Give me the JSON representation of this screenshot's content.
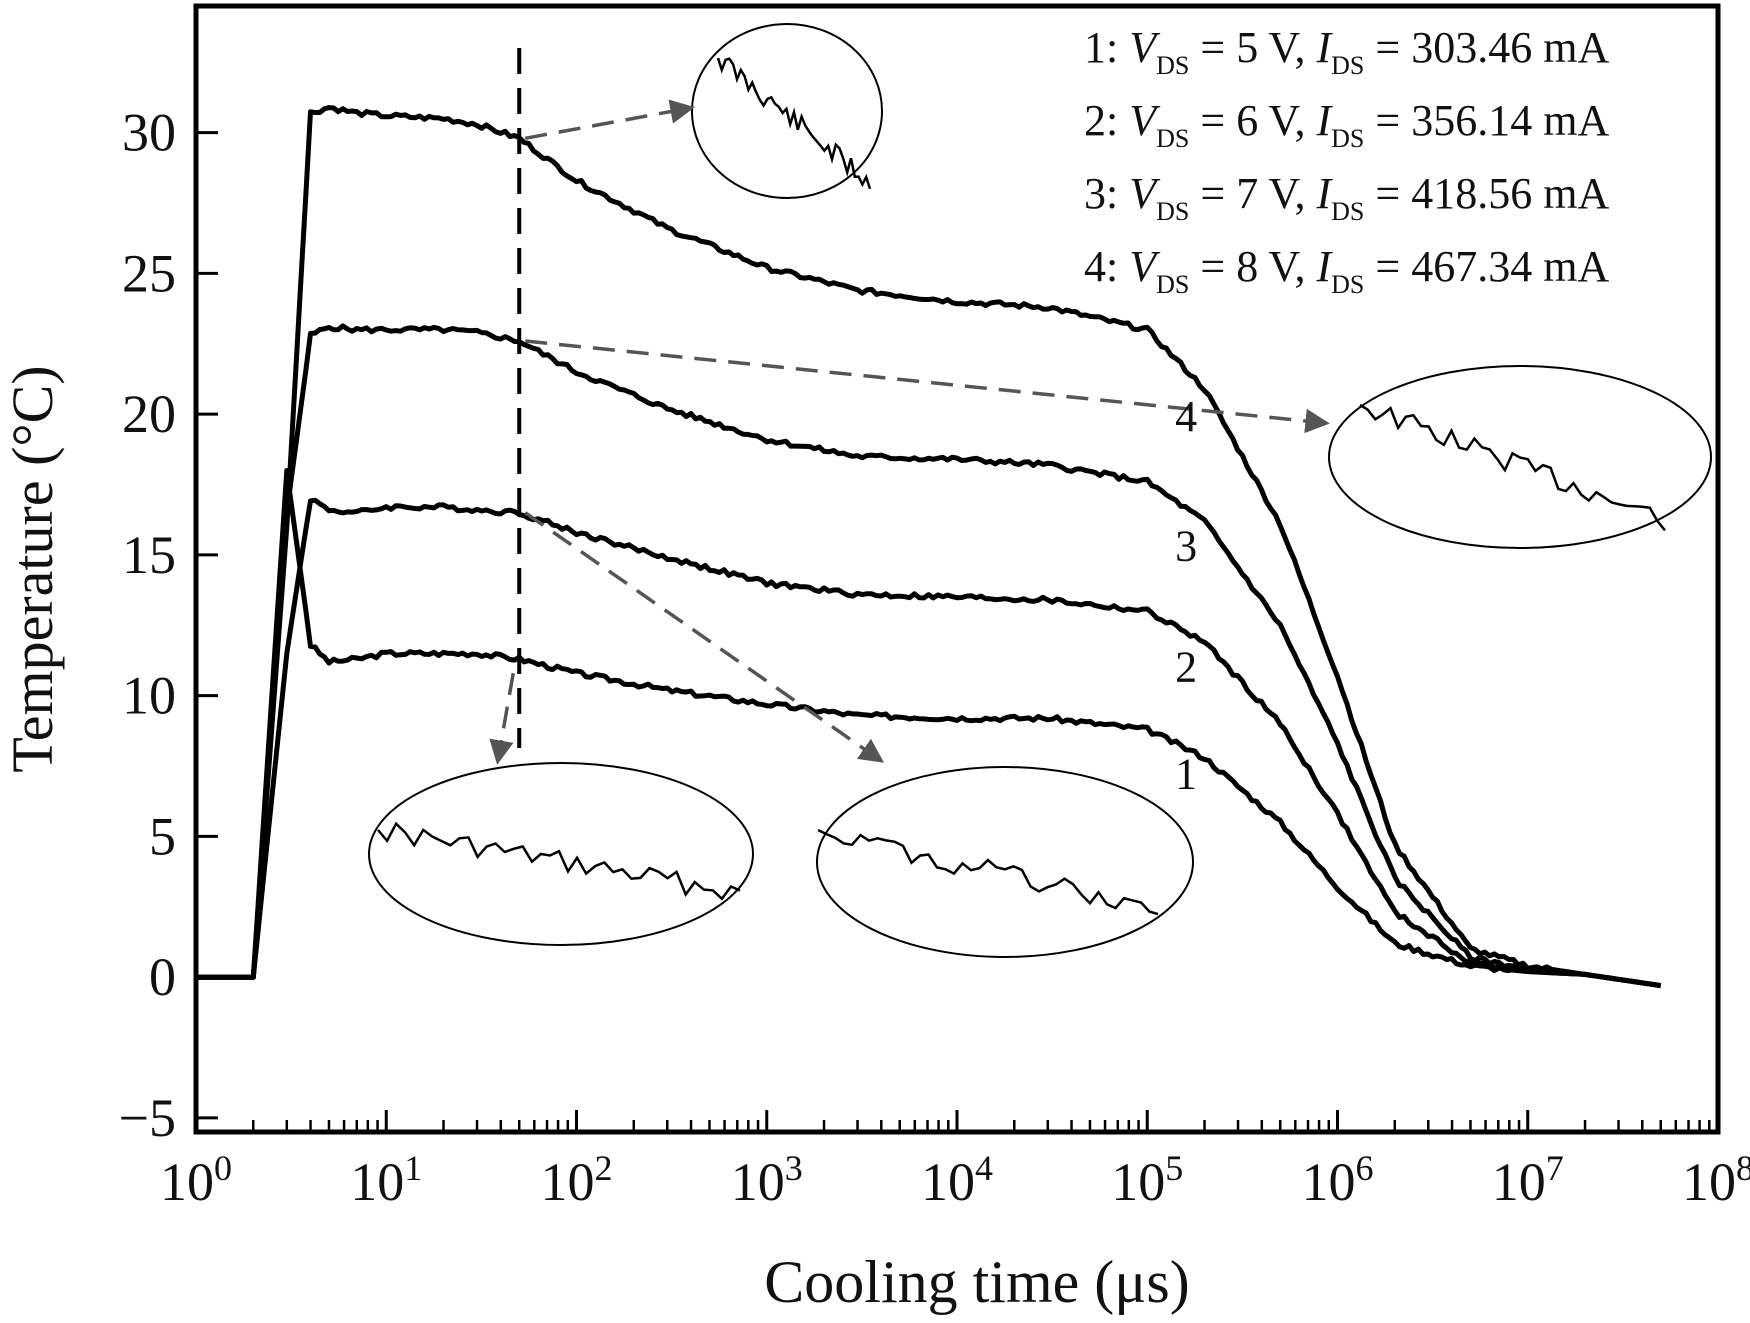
{
  "chart_data": {
    "type": "line",
    "xlabel": "Cooling time (μs)",
    "ylabel": "Temperature (°C)",
    "x_scale": "log",
    "xlim": [
      1,
      100000000
    ],
    "ylim": [
      -5.5,
      34.5
    ],
    "x_tick_exponents": [
      "0",
      "1",
      "2",
      "3",
      "4",
      "5",
      "6",
      "7",
      "8"
    ],
    "x_tick_base": "10",
    "y_ticks": [
      30,
      25,
      20,
      15,
      10,
      5,
      0,
      -5
    ],
    "y_tick_labels": [
      "30",
      "25",
      "20",
      "15",
      "10",
      "5",
      "0",
      "−5"
    ],
    "grid": false,
    "legend": [
      {
        "prefix": "1: ",
        "v": "V",
        "v_sub": "DS",
        "v_val": " = 5 V, ",
        "i": "I",
        "i_sub": "DS",
        "i_val": " = 303.46 mA"
      },
      {
        "prefix": "2: ",
        "v": "V",
        "v_sub": "DS",
        "v_val": " = 6 V, ",
        "i": "I",
        "i_sub": "DS",
        "i_val": " = 356.14 mA"
      },
      {
        "prefix": "3: ",
        "v": "V",
        "v_sub": "DS",
        "v_val": " = 7 V, ",
        "i": "I",
        "i_sub": "DS",
        "i_val": " = 418.56 mA"
      },
      {
        "prefix": "4: ",
        "v": "V",
        "v_sub": "DS",
        "v_val": " = 8 V, ",
        "i": "I",
        "i_sub": "DS",
        "i_val": " = 467.34 mA"
      }
    ],
    "legend_position": "top-right",
    "curve_labels": [
      {
        "text": "1",
        "x": 160000,
        "y": 6.7
      },
      {
        "text": "2",
        "x": 160000,
        "y": 10.5
      },
      {
        "text": "3",
        "x": 160000,
        "y": 14.8
      },
      {
        "text": "4",
        "x": 160000,
        "y": 19.4
      }
    ],
    "annotation": {
      "dashed_marker_x": 50
    },
    "series": [
      {
        "x": [
          1,
          2,
          3,
          4,
          5,
          7,
          10,
          20,
          30,
          50,
          100,
          300,
          1000,
          3000,
          10000,
          30000,
          100000,
          200000,
          500000,
          1000000,
          2000000,
          5000000,
          10000000,
          20000000,
          50000000
        ],
        "y": [
          0,
          0,
          18,
          11.8,
          11.2,
          11.3,
          11.5,
          11.5,
          11.5,
          11.3,
          10.8,
          10.2,
          9.7,
          9.3,
          9.2,
          9.2,
          8.8,
          7.8,
          5.5,
          3.2,
          1.2,
          0.4,
          0.2,
          0.1,
          -0.3
        ]
      },
      {
        "x": [
          1,
          2,
          3,
          4,
          5,
          7,
          10,
          20,
          30,
          50,
          100,
          300,
          1000,
          3000,
          10000,
          30000,
          100000,
          200000,
          500000,
          1000000,
          2000000,
          5000000,
          10000000,
          20000000,
          50000000
        ],
        "y": [
          0,
          0,
          11.5,
          17.0,
          16.6,
          16.5,
          16.7,
          16.7,
          16.6,
          16.5,
          15.8,
          14.9,
          14.0,
          13.6,
          13.5,
          13.4,
          13.0,
          11.9,
          9.0,
          5.8,
          2.3,
          0.5,
          0.2,
          0.1,
          -0.3
        ]
      },
      {
        "x": [
          1,
          2,
          3,
          4,
          5,
          7,
          10,
          20,
          30,
          50,
          100,
          300,
          1000,
          3000,
          10000,
          30000,
          100000,
          200000,
          500000,
          1000000,
          2000000,
          5000000,
          10000000,
          20000000,
          50000000
        ],
        "y": [
          0,
          0,
          16.5,
          22.8,
          23.1,
          23.0,
          23.0,
          23.0,
          22.9,
          22.6,
          21.5,
          20.2,
          19.1,
          18.5,
          18.4,
          18.2,
          17.6,
          16.2,
          12.5,
          8.3,
          3.5,
          0.7,
          0.3,
          0.1,
          -0.3
        ]
      },
      {
        "x": [
          1,
          2,
          3,
          4,
          5,
          7,
          10,
          20,
          30,
          50,
          100,
          300,
          1000,
          3000,
          10000,
          30000,
          100000,
          200000,
          500000,
          1000000,
          2000000,
          5000000,
          10000000,
          20000000,
          50000000
        ],
        "y": [
          0,
          0,
          16.0,
          30.7,
          30.9,
          30.7,
          30.6,
          30.5,
          30.3,
          29.8,
          28.3,
          26.6,
          25.2,
          24.4,
          24.0,
          23.8,
          23.0,
          20.9,
          16.1,
          10.7,
          4.7,
          1.0,
          0.4,
          0.1,
          -0.3
        ]
      }
    ]
  }
}
